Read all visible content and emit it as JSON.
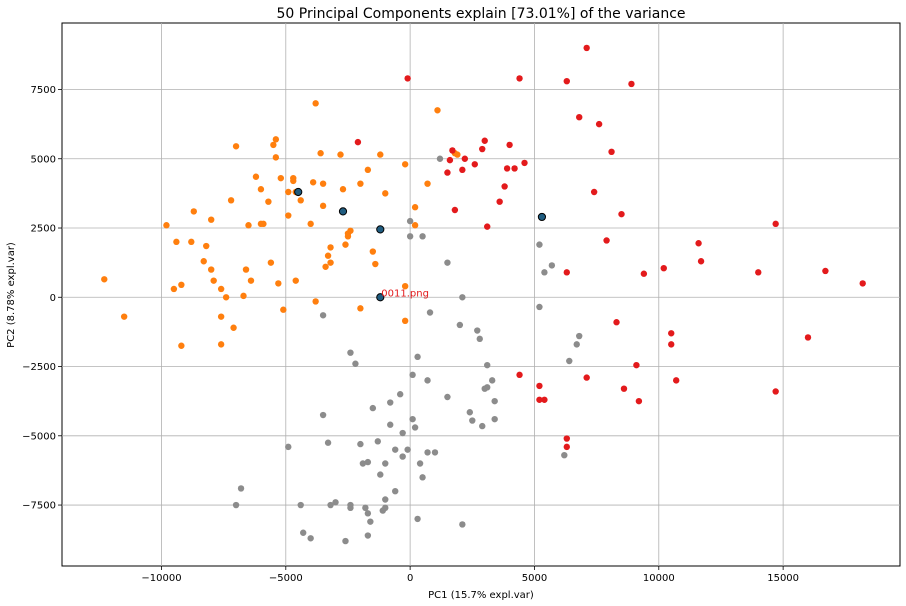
{
  "chart_data": {
    "type": "scatter",
    "title": "50 Principal Components explain [73.01%] of the variance",
    "xlabel": "PC1 (15.7% expl.var)",
    "ylabel": "PC2 (8.78% expl.var)",
    "xlim": [
      -14000,
      19700
    ],
    "ylim": [
      -9700,
      9900
    ],
    "xticks": [
      -10000,
      -5000,
      0,
      5000,
      10000,
      15000
    ],
    "yticks": [
      -7500,
      -5000,
      -2500,
      0,
      2500,
      5000,
      7500
    ],
    "grid": true,
    "colors": {
      "orange": "#ff7f0e",
      "gray": "#8c8c8c",
      "red": "#e31a1c",
      "highlight": "#1f5c80"
    },
    "series": [
      {
        "color": "orange",
        "points": [
          [
            -12300,
            650
          ],
          [
            -11500,
            -700
          ],
          [
            -9800,
            2600
          ],
          [
            -9400,
            2000
          ],
          [
            -9500,
            300
          ],
          [
            -9200,
            450
          ],
          [
            -9200,
            -1750
          ],
          [
            -8700,
            3100
          ],
          [
            -8800,
            2000
          ],
          [
            -8300,
            1300
          ],
          [
            -8200,
            1850
          ],
          [
            -8000,
            2800
          ],
          [
            -8000,
            1000
          ],
          [
            -7900,
            600
          ],
          [
            -7600,
            300
          ],
          [
            -7600,
            -700
          ],
          [
            -7600,
            -1700
          ],
          [
            -7400,
            0
          ],
          [
            -7200,
            3500
          ],
          [
            -7100,
            -1100
          ],
          [
            -7000,
            5450
          ],
          [
            -6700,
            50
          ],
          [
            -6600,
            1000
          ],
          [
            -6500,
            2600
          ],
          [
            -6400,
            600
          ],
          [
            -6200,
            4350
          ],
          [
            -6000,
            3900
          ],
          [
            -6000,
            2650
          ],
          [
            -5900,
            2650
          ],
          [
            -5700,
            3450
          ],
          [
            -5600,
            1250
          ],
          [
            -5500,
            5500
          ],
          [
            -5400,
            5700
          ],
          [
            -5400,
            5050
          ],
          [
            -5300,
            500
          ],
          [
            -5200,
            4300
          ],
          [
            -5100,
            -450
          ],
          [
            -4900,
            3800
          ],
          [
            -4900,
            2950
          ],
          [
            -4700,
            4300
          ],
          [
            -4700,
            4200
          ],
          [
            -4600,
            3800
          ],
          [
            -4600,
            600
          ],
          [
            -4400,
            3500
          ],
          [
            -4000,
            2650
          ],
          [
            -3900,
            4150
          ],
          [
            -3800,
            7000
          ],
          [
            -3800,
            -150
          ],
          [
            -3600,
            5200
          ],
          [
            -3500,
            4100
          ],
          [
            -3500,
            3300
          ],
          [
            -3400,
            1100
          ],
          [
            -3300,
            1500
          ],
          [
            -3200,
            1250
          ],
          [
            -3200,
            1800
          ],
          [
            -2800,
            5150
          ],
          [
            -2700,
            3900
          ],
          [
            -2600,
            1900
          ],
          [
            -2500,
            2300
          ],
          [
            -2400,
            2400
          ],
          [
            -2500,
            2200
          ],
          [
            -2000,
            4100
          ],
          [
            -2000,
            -400
          ],
          [
            -1700,
            4600
          ],
          [
            -1500,
            1650
          ],
          [
            -1400,
            1200
          ],
          [
            -1200,
            5150
          ],
          [
            -1000,
            3750
          ],
          [
            -200,
            4800
          ],
          [
            -200,
            400
          ],
          [
            -200,
            -850
          ],
          [
            200,
            3250
          ],
          [
            200,
            2600
          ],
          [
            700,
            4100
          ],
          [
            1100,
            6750
          ],
          [
            1900,
            5150
          ],
          [
            1800,
            5200
          ]
        ]
      },
      {
        "color": "gray",
        "points": [
          [
            -6800,
            -6900
          ],
          [
            -7000,
            -7500
          ],
          [
            -4900,
            -5400
          ],
          [
            -4400,
            -7500
          ],
          [
            -4300,
            -8500
          ],
          [
            -4000,
            -8700
          ],
          [
            -3500,
            -4250
          ],
          [
            -3500,
            -650
          ],
          [
            -3300,
            -5250
          ],
          [
            -3200,
            -7500
          ],
          [
            -3000,
            -7400
          ],
          [
            -2600,
            -8800
          ],
          [
            -2400,
            -7600
          ],
          [
            -2400,
            -7500
          ],
          [
            -2400,
            -2000
          ],
          [
            -2200,
            -2400
          ],
          [
            -2000,
            -5300
          ],
          [
            -1900,
            -6000
          ],
          [
            -1800,
            -7600
          ],
          [
            -1700,
            -7800
          ],
          [
            -1700,
            -8600
          ],
          [
            -1700,
            -5950
          ],
          [
            -1600,
            -8100
          ],
          [
            -1500,
            -4000
          ],
          [
            -1300,
            -5200
          ],
          [
            -1200,
            -6400
          ],
          [
            -1100,
            -7700
          ],
          [
            -1000,
            -7300
          ],
          [
            -1000,
            -6000
          ],
          [
            -1000,
            -7600
          ],
          [
            -800,
            -4600
          ],
          [
            -800,
            -3800
          ],
          [
            -600,
            -5500
          ],
          [
            -600,
            -7000
          ],
          [
            -400,
            -3500
          ],
          [
            -300,
            -4900
          ],
          [
            -300,
            -5750
          ],
          [
            -100,
            -5500
          ],
          [
            0,
            2750
          ],
          [
            0,
            2200
          ],
          [
            100,
            -2800
          ],
          [
            100,
            -4400
          ],
          [
            200,
            -4700
          ],
          [
            300,
            -2150
          ],
          [
            300,
            -8000
          ],
          [
            400,
            -6000
          ],
          [
            500,
            -6500
          ],
          [
            500,
            2200
          ],
          [
            700,
            -3000
          ],
          [
            700,
            -5600
          ],
          [
            800,
            -550
          ],
          [
            1000,
            -5600
          ],
          [
            1200,
            5000
          ],
          [
            1500,
            -3600
          ],
          [
            1500,
            1250
          ],
          [
            2000,
            -1000
          ],
          [
            2100,
            0
          ],
          [
            2100,
            -8200
          ],
          [
            2400,
            -4150
          ],
          [
            2500,
            -4450
          ],
          [
            2700,
            -1200
          ],
          [
            2800,
            -1500
          ],
          [
            2900,
            -4650
          ],
          [
            3000,
            -3300
          ],
          [
            3100,
            -2450
          ],
          [
            3100,
            -3250
          ],
          [
            3300,
            -3000
          ],
          [
            3400,
            -3750
          ],
          [
            3400,
            -4400
          ],
          [
            5200,
            1900
          ],
          [
            5200,
            -350
          ],
          [
            5400,
            900
          ],
          [
            5700,
            1150
          ],
          [
            6200,
            -5700
          ],
          [
            6400,
            -2300
          ],
          [
            6800,
            -1400
          ],
          [
            6700,
            -1700
          ]
        ]
      },
      {
        "color": "red",
        "points": [
          [
            -2100,
            5600
          ],
          [
            -100,
            7900
          ],
          [
            1500,
            4500
          ],
          [
            1600,
            4950
          ],
          [
            1700,
            5300
          ],
          [
            1800,
            3150
          ],
          [
            2100,
            4600
          ],
          [
            2200,
            5000
          ],
          [
            2600,
            4800
          ],
          [
            2900,
            5350
          ],
          [
            3000,
            5650
          ],
          [
            3100,
            2550
          ],
          [
            3600,
            3450
          ],
          [
            3800,
            4000
          ],
          [
            3900,
            4650
          ],
          [
            4000,
            5500
          ],
          [
            4200,
            4650
          ],
          [
            4400,
            -2800
          ],
          [
            4400,
            7900
          ],
          [
            4600,
            4850
          ],
          [
            5200,
            -3200
          ],
          [
            5200,
            -3700
          ],
          [
            5400,
            -3700
          ],
          [
            6300,
            7800
          ],
          [
            6300,
            -5100
          ],
          [
            6300,
            -5400
          ],
          [
            6300,
            900
          ],
          [
            6800,
            6500
          ],
          [
            7100,
            9000
          ],
          [
            7100,
            -2900
          ],
          [
            7400,
            3800
          ],
          [
            7600,
            6250
          ],
          [
            7900,
            2050
          ],
          [
            8100,
            5250
          ],
          [
            8300,
            -900
          ],
          [
            8500,
            3000
          ],
          [
            8600,
            -3300
          ],
          [
            8900,
            7700
          ],
          [
            9100,
            -2450
          ],
          [
            9200,
            -3750
          ],
          [
            9400,
            850
          ],
          [
            10200,
            1050
          ],
          [
            10500,
            -1300
          ],
          [
            10500,
            -1700
          ],
          [
            10700,
            -3000
          ],
          [
            11600,
            1950
          ],
          [
            11700,
            1300
          ],
          [
            14000,
            900
          ],
          [
            14700,
            2650
          ],
          [
            14700,
            -3400
          ],
          [
            16000,
            -1450
          ],
          [
            16700,
            950
          ],
          [
            18200,
            500
          ]
        ]
      },
      {
        "color": "highlight",
        "points": [
          [
            -4500,
            3800
          ],
          [
            -2700,
            3100
          ],
          [
            -1200,
            2450
          ],
          [
            5300,
            2900
          ],
          [
            -1200,
            0
          ]
        ]
      }
    ],
    "annotation": {
      "text": "0011.png",
      "x": -1200,
      "y": 0,
      "color": "#e31a1c"
    }
  }
}
